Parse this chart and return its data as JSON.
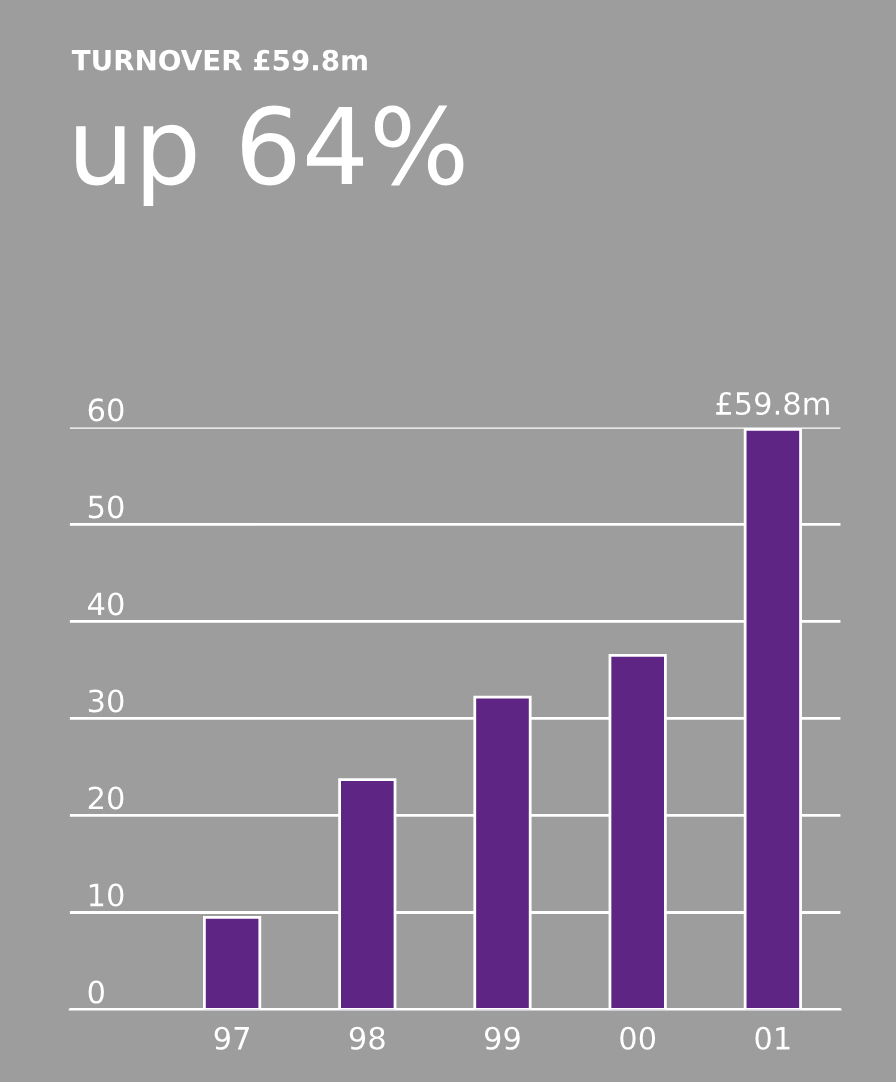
{
  "chart_data": {
    "type": "bar",
    "title": "TURNOVER £59.8m",
    "subtitle": "up 64%",
    "categories": [
      "97",
      "98",
      "99",
      "00",
      "01"
    ],
    "values": [
      9.5,
      23.7,
      32.2,
      36.5,
      59.8
    ],
    "value_labels": [
      null,
      null,
      null,
      null,
      "£59.8m"
    ],
    "color": "#5e2585",
    "ylim": [
      0,
      60
    ],
    "yticks": [
      0,
      10,
      20,
      30,
      40,
      50,
      60
    ],
    "grid": "y",
    "legend": false
  }
}
